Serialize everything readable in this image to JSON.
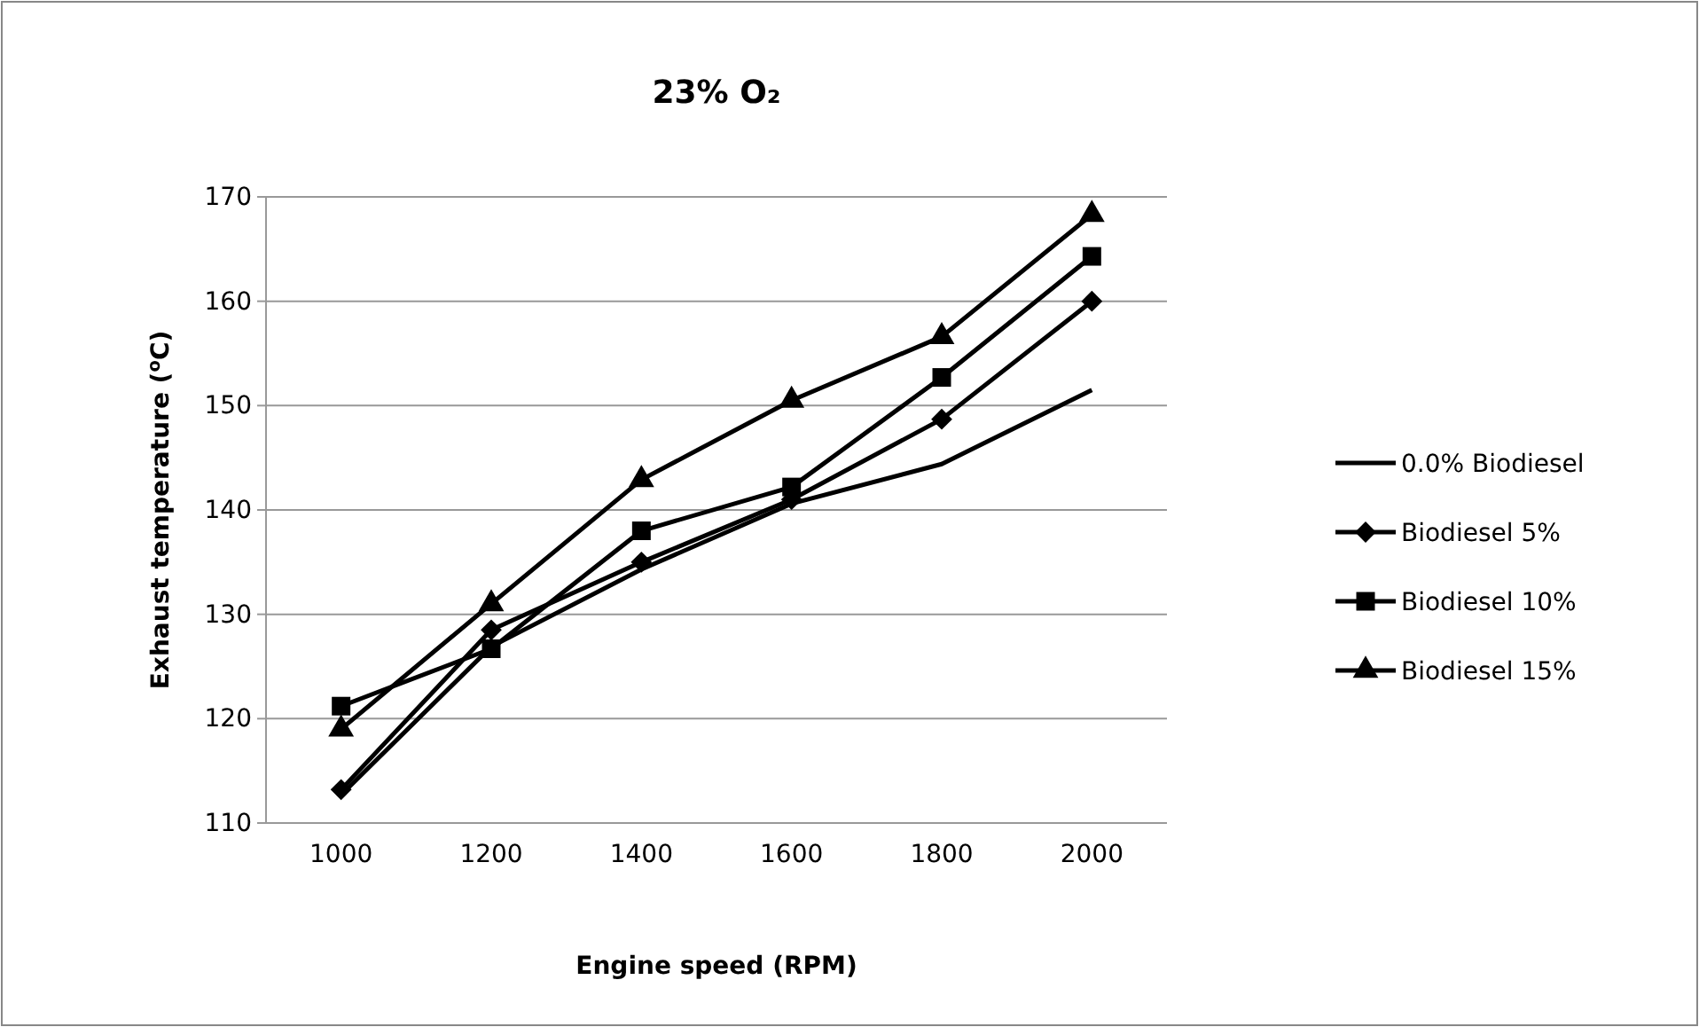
{
  "chart_data": {
    "type": "line",
    "title": "23% O₂",
    "xlabel": "Engine speed (RPM)",
    "ylabel": "Exhaust temperature ($^{o}$C)",
    "categories": [
      "1000",
      "1200",
      "1400",
      "1600",
      "1800",
      "2000"
    ],
    "series": [
      {
        "name": "0.0% Biodiesel",
        "color": "#000000",
        "marker": "none",
        "values": [
          112.7,
          126.9,
          134.3,
          140.6,
          144.4,
          151.5
        ]
      },
      {
        "name": "Biodiesel 5%",
        "color": "#000000",
        "marker": "diamond",
        "values": [
          113.2,
          128.5,
          135,
          141,
          148.7,
          160
        ]
      },
      {
        "name": "Biodiesel 10%",
        "color": "#000000",
        "marker": "square",
        "values": [
          121.2,
          126.7,
          138,
          142.2,
          152.7,
          164.3
        ]
      },
      {
        "name": "Biodiesel 15%",
        "color": "#000000",
        "marker": "triangle",
        "values": [
          119,
          131,
          142.9,
          150.5,
          156.6,
          168.3
        ]
      }
    ],
    "ylim": [
      110,
      170
    ],
    "yticks": [
      110,
      120,
      130,
      140,
      150,
      160,
      170
    ],
    "grid": "y",
    "legend": "right",
    "line_style": "solid"
  }
}
